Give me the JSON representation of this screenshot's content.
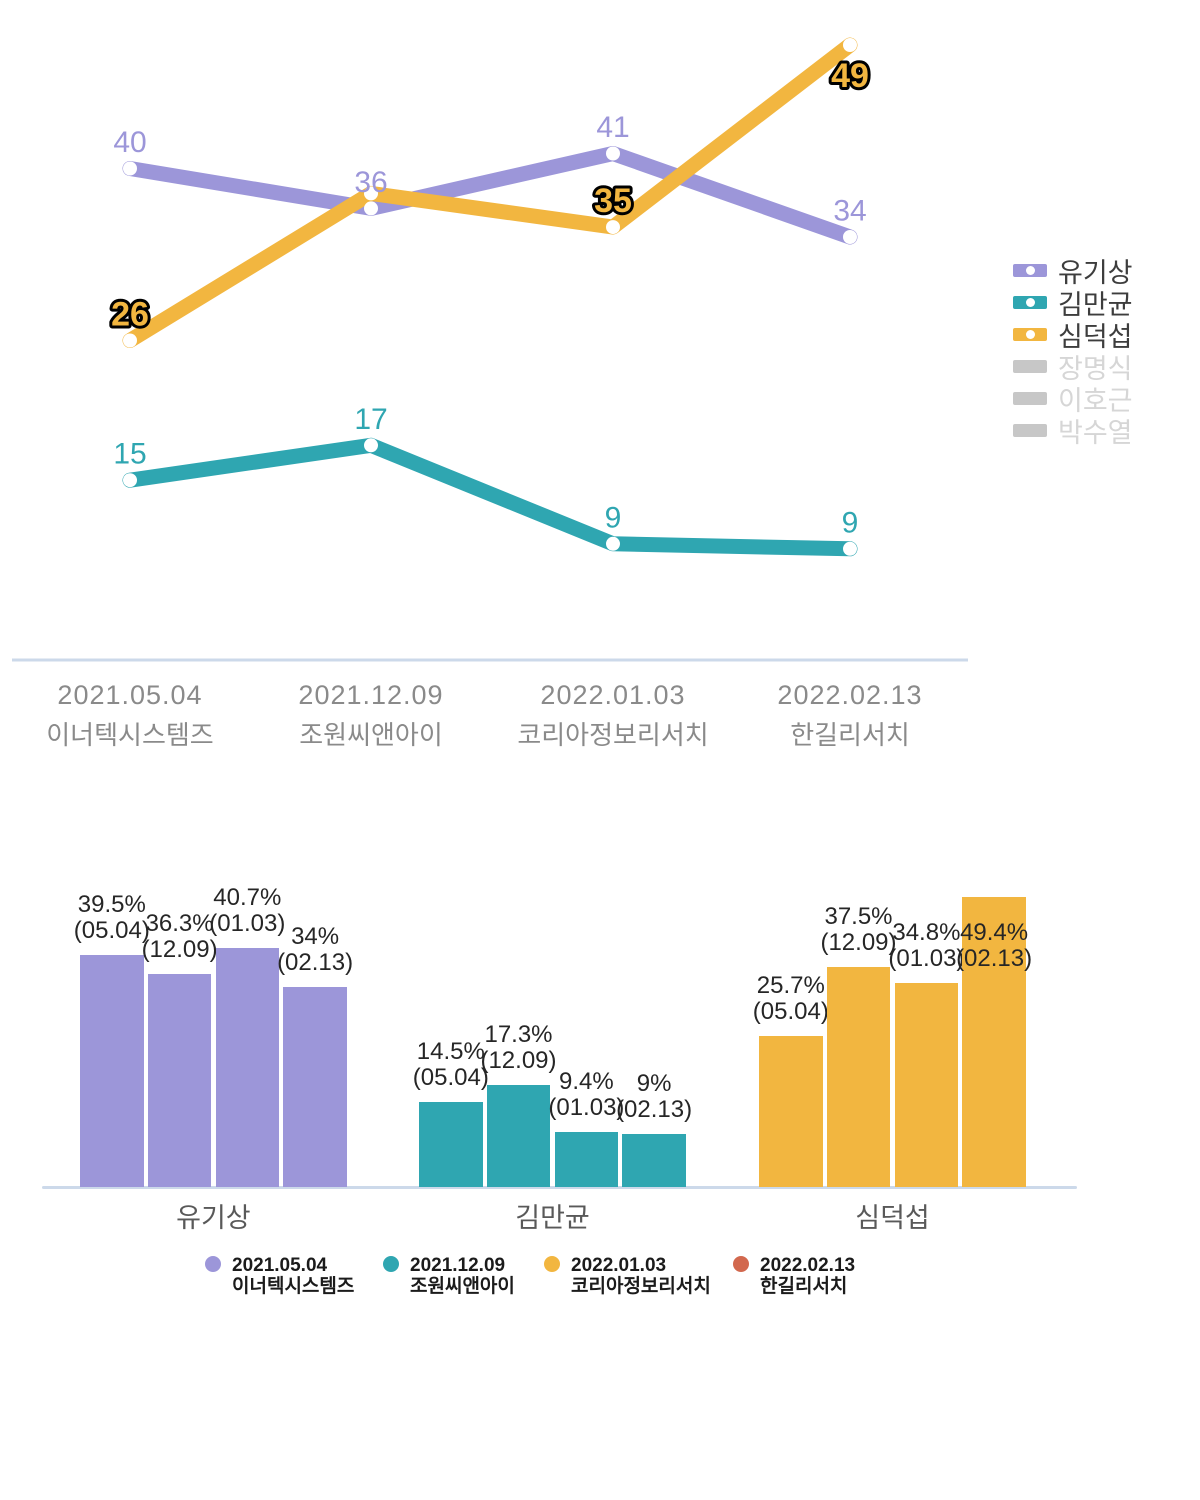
{
  "colors": {
    "purple": "#9c96d9",
    "teal": "#2fa6b1",
    "yellow": "#f2b640",
    "red": "#d2684e",
    "axis": "#ccd9ea",
    "inactive_swatch": "#c7c7c7",
    "inactive_text": "#d6d6d6",
    "label_dark": "#262626",
    "xlabel_gray": "#8a8a8a"
  },
  "chart_data": [
    {
      "type": "line",
      "title": "",
      "x_categories": [
        {
          "date": "2021.05.04",
          "pollster": "이너텍시스템즈"
        },
        {
          "date": "2021.12.09",
          "pollster": "조원씨앤아이"
        },
        {
          "date": "2022.01.03",
          "pollster": "코리아정보리서치"
        },
        {
          "date": "2022.02.13",
          "pollster": "한길리서치"
        }
      ],
      "series": [
        {
          "name": "유기상",
          "color": "#9c96d9",
          "values": [
            39.5,
            36.3,
            40.7,
            34
          ],
          "point_labels": [
            "40",
            "36",
            "41",
            "34"
          ],
          "label_style": "plain"
        },
        {
          "name": "김만균",
          "color": "#2fa6b1",
          "values": [
            14.5,
            17.3,
            9.4,
            9
          ],
          "point_labels": [
            "15",
            "17",
            "9",
            "9"
          ],
          "label_style": "plain"
        },
        {
          "name": "심덕섭",
          "color": "#f2b640",
          "values": [
            25.7,
            37.5,
            34.8,
            49.4
          ],
          "point_labels": [
            "26",
            "",
            "35",
            "49"
          ],
          "label_style": "outlined"
        }
      ],
      "legend": [
        {
          "label": "유기상",
          "color": "#9c96d9",
          "active": true
        },
        {
          "label": "김만균",
          "color": "#2fa6b1",
          "active": true
        },
        {
          "label": "심덕섭",
          "color": "#f2b640",
          "active": true
        },
        {
          "label": "장명식",
          "color": "#c7c7c7",
          "active": false
        },
        {
          "label": "이호근",
          "color": "#c7c7c7",
          "active": false
        },
        {
          "label": "박수열",
          "color": "#c7c7c7",
          "active": false
        }
      ]
    },
    {
      "type": "bar",
      "groups": [
        {
          "name": "유기상",
          "color": "#9c96d9",
          "bars": [
            {
              "value": 39.5,
              "label": "39.5%",
              "sub": "(05.04)"
            },
            {
              "value": 36.3,
              "label": "36.3%",
              "sub": "(12.09)"
            },
            {
              "value": 40.7,
              "label": "40.7%",
              "sub": "(01.03)"
            },
            {
              "value": 34,
              "label": "34%",
              "sub": "(02.13)"
            }
          ]
        },
        {
          "name": "김만균",
          "color": "#2fa6b1",
          "bars": [
            {
              "value": 14.5,
              "label": "14.5%",
              "sub": "(05.04)"
            },
            {
              "value": 17.3,
              "label": "17.3%",
              "sub": "(12.09)"
            },
            {
              "value": 9.4,
              "label": "9.4%",
              "sub": "(01.03)"
            },
            {
              "value": 9,
              "label": "9%",
              "sub": "(02.13)"
            }
          ]
        },
        {
          "name": "심덕섭",
          "color": "#f2b640",
          "bars": [
            {
              "value": 25.7,
              "label": "25.7%",
              "sub": "(05.04)"
            },
            {
              "value": 37.5,
              "label": "37.5%",
              "sub": "(12.09)"
            },
            {
              "value": 34.8,
              "label": "34.8%",
              "sub": "(01.03)"
            },
            {
              "value": 49.4,
              "label": "49.4%",
              "sub": "(02.13)"
            }
          ]
        }
      ],
      "legend": [
        {
          "date": "2021.05.04",
          "pollster": "이너텍시스템즈",
          "color": "#9c96d9"
        },
        {
          "date": "2021.12.09",
          "pollster": "조원씨앤아이",
          "color": "#2fa6b1"
        },
        {
          "date": "2022.01.03",
          "pollster": "코리아정보리서치",
          "color": "#f2b640"
        },
        {
          "date": "2022.02.13",
          "pollster": "한길리서치",
          "color": "#d2684e"
        }
      ]
    }
  ]
}
